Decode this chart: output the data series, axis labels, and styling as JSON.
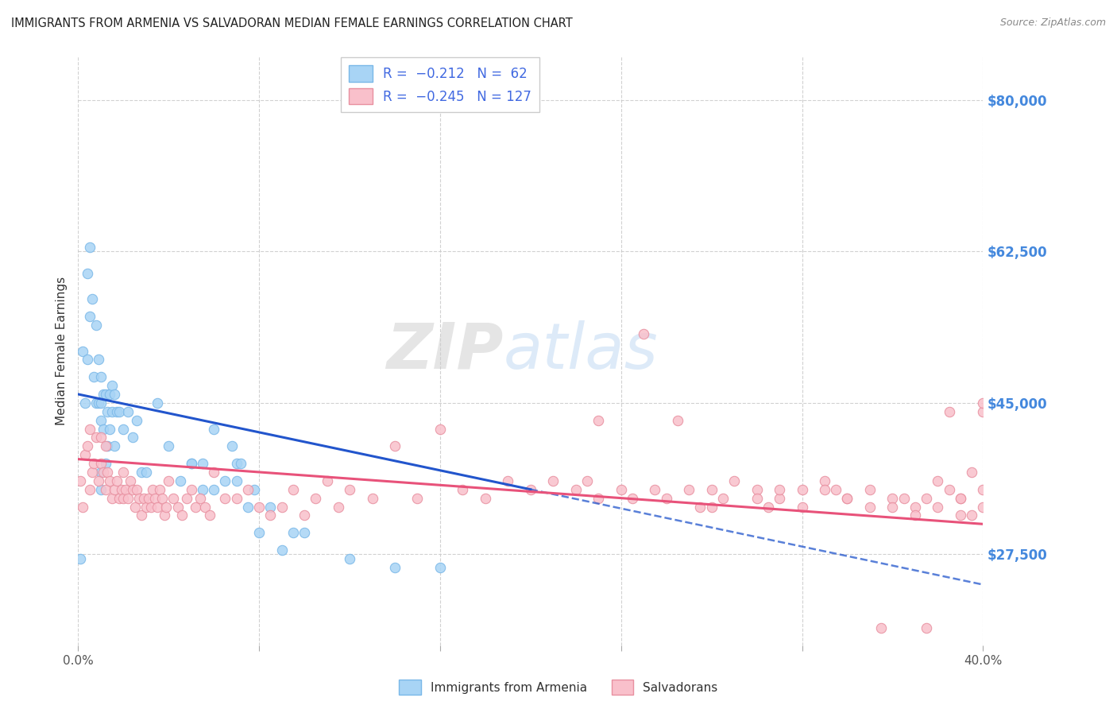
{
  "title": "IMMIGRANTS FROM ARMENIA VS SALVADORAN MEDIAN FEMALE EARNINGS CORRELATION CHART",
  "source": "Source: ZipAtlas.com",
  "ylabel": "Median Female Earnings",
  "yticks": [
    27500,
    45000,
    62500,
    80000
  ],
  "ytick_labels": [
    "$27,500",
    "$45,000",
    "$62,500",
    "$80,000"
  ],
  "xlim": [
    0.0,
    40.0
  ],
  "ylim": [
    17000,
    85000
  ],
  "watermark_zip": "ZIP",
  "watermark_atlas": "atlas",
  "dot_color_blue": "#a8d4f5",
  "dot_color_pink": "#f9c0cb",
  "line_color_blue": "#2255cc",
  "line_color_pink": "#e8527a",
  "ytick_color": "#4488dd",
  "title_color": "#222222",
  "background_color": "#ffffff",
  "grid_color": "#cccccc",
  "blue_line_x0": 0.0,
  "blue_line_y0": 46000,
  "blue_line_x1": 20.0,
  "blue_line_y1": 35000,
  "pink_line_x0": 0.0,
  "pink_line_y0": 38500,
  "pink_line_x1": 40.0,
  "pink_line_y1": 31000,
  "armenia_x": [
    0.1,
    0.2,
    0.3,
    0.4,
    0.4,
    0.5,
    0.5,
    0.6,
    0.7,
    0.8,
    0.8,
    0.9,
    0.9,
    1.0,
    1.0,
    1.0,
    1.0,
    1.0,
    1.1,
    1.1,
    1.2,
    1.2,
    1.3,
    1.3,
    1.4,
    1.4,
    1.5,
    1.5,
    1.6,
    1.6,
    1.7,
    1.8,
    2.0,
    2.2,
    2.4,
    2.6,
    2.8,
    3.0,
    3.5,
    4.0,
    4.5,
    5.0,
    5.5,
    6.0,
    6.5,
    7.0,
    7.5,
    8.0,
    9.0,
    10.0,
    12.0,
    14.0,
    16.0,
    7.0,
    6.0,
    5.5,
    5.0,
    6.8,
    7.2,
    7.8,
    8.5,
    9.5
  ],
  "armenia_y": [
    27000,
    51000,
    45000,
    50000,
    60000,
    63000,
    55000,
    57000,
    48000,
    54000,
    45000,
    45000,
    50000,
    43000,
    45000,
    37000,
    48000,
    35000,
    46000,
    42000,
    46000,
    38000,
    44000,
    40000,
    46000,
    42000,
    44000,
    47000,
    46000,
    40000,
    44000,
    44000,
    42000,
    44000,
    41000,
    43000,
    37000,
    37000,
    45000,
    40000,
    36000,
    38000,
    35000,
    35000,
    36000,
    36000,
    33000,
    30000,
    28000,
    30000,
    27000,
    26000,
    26000,
    38000,
    42000,
    38000,
    38000,
    40000,
    38000,
    35000,
    33000,
    30000
  ],
  "salvadoran_x": [
    0.1,
    0.2,
    0.3,
    0.4,
    0.5,
    0.5,
    0.6,
    0.7,
    0.8,
    0.9,
    1.0,
    1.0,
    1.1,
    1.2,
    1.2,
    1.3,
    1.4,
    1.5,
    1.6,
    1.7,
    1.8,
    1.9,
    2.0,
    2.0,
    2.1,
    2.2,
    2.3,
    2.4,
    2.5,
    2.6,
    2.7,
    2.8,
    2.9,
    3.0,
    3.1,
    3.2,
    3.3,
    3.4,
    3.5,
    3.6,
    3.7,
    3.8,
    3.9,
    4.0,
    4.2,
    4.4,
    4.6,
    4.8,
    5.0,
    5.2,
    5.4,
    5.6,
    5.8,
    6.0,
    6.5,
    7.0,
    7.5,
    8.0,
    8.5,
    9.0,
    9.5,
    10.0,
    10.5,
    11.0,
    11.5,
    12.0,
    13.0,
    14.0,
    15.0,
    16.0,
    17.0,
    18.0,
    19.0,
    20.0,
    21.0,
    22.0,
    23.0,
    24.0,
    25.0,
    26.0,
    27.0,
    28.0,
    29.0,
    30.0,
    31.0,
    32.0,
    33.0,
    34.0,
    35.0,
    36.0,
    37.0,
    38.0,
    39.0,
    40.0,
    25.5,
    30.0,
    35.5,
    37.5,
    38.5,
    39.5,
    40.0,
    23.0,
    27.5,
    32.0,
    36.0,
    39.0,
    39.5,
    28.0,
    30.5,
    33.5,
    36.5,
    38.0,
    24.5,
    26.5,
    31.0,
    34.0,
    37.0,
    38.5,
    40.0,
    22.5,
    28.5,
    33.0,
    35.0,
    37.5,
    39.0,
    40.0,
    40.5
  ],
  "salvadoran_y": [
    36000,
    33000,
    39000,
    40000,
    35000,
    42000,
    37000,
    38000,
    41000,
    36000,
    41000,
    38000,
    37000,
    40000,
    35000,
    37000,
    36000,
    34000,
    35000,
    36000,
    34000,
    35000,
    34000,
    37000,
    35000,
    34000,
    36000,
    35000,
    33000,
    35000,
    34000,
    32000,
    34000,
    33000,
    34000,
    33000,
    35000,
    34000,
    33000,
    35000,
    34000,
    32000,
    33000,
    36000,
    34000,
    33000,
    32000,
    34000,
    35000,
    33000,
    34000,
    33000,
    32000,
    37000,
    34000,
    34000,
    35000,
    33000,
    32000,
    33000,
    35000,
    32000,
    34000,
    36000,
    33000,
    35000,
    34000,
    40000,
    34000,
    42000,
    35000,
    34000,
    36000,
    35000,
    36000,
    35000,
    34000,
    35000,
    53000,
    34000,
    35000,
    33000,
    36000,
    35000,
    34000,
    33000,
    36000,
    34000,
    35000,
    34000,
    33000,
    36000,
    34000,
    44000,
    35000,
    34000,
    19000,
    19000,
    44000,
    37000,
    45000,
    43000,
    33000,
    35000,
    33000,
    34000,
    32000,
    35000,
    33000,
    35000,
    34000,
    33000,
    34000,
    43000,
    35000,
    34000,
    32000,
    35000,
    33000,
    36000,
    34000,
    35000,
    33000,
    34000,
    32000,
    35000,
    33000
  ]
}
